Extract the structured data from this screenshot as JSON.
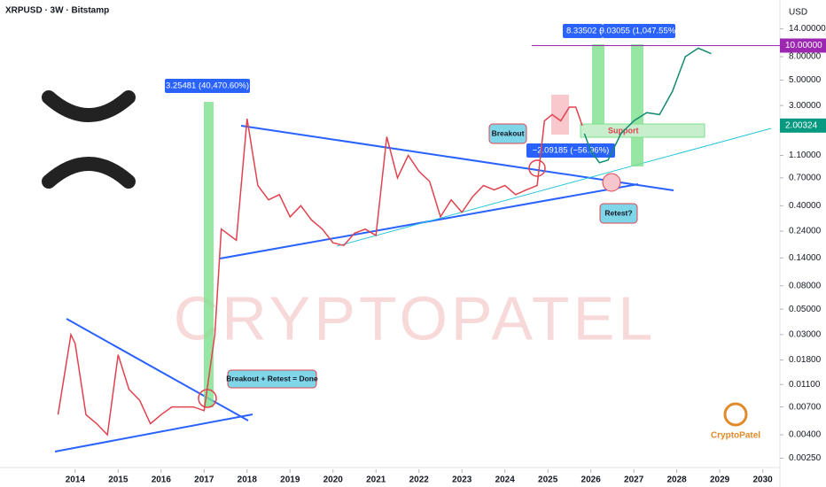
{
  "chart_data": {
    "type": "line",
    "title": "XRPUSD · 3W · Bitstamp",
    "currency": "USD",
    "log_scale": true,
    "xlim": [
      2012.25,
      2030.4
    ],
    "xticks": [
      2014,
      2015,
      2016,
      2017,
      2018,
      2019,
      2020,
      2021,
      2022,
      2023,
      2024,
      2025,
      2026,
      2027,
      2028,
      2029,
      2030
    ],
    "ylim": [
      0.002,
      25
    ],
    "yticks": [
      {
        "value": 14,
        "label": "14.00000"
      },
      {
        "value": 8,
        "label": "8.00000"
      },
      {
        "value": 5,
        "label": "5.00000"
      },
      {
        "value": 3,
        "label": "3.00000"
      },
      {
        "value": 1.1,
        "label": "1.10000"
      },
      {
        "value": 0.7,
        "label": "0.70000"
      },
      {
        "value": 0.4,
        "label": "0.40000"
      },
      {
        "value": 0.24,
        "label": "0.24000"
      },
      {
        "value": 0.14,
        "label": "0.14000"
      },
      {
        "value": 0.08,
        "label": "0.08000"
      },
      {
        "value": 0.05,
        "label": "0.05000"
      },
      {
        "value": 0.03,
        "label": "0.03000"
      },
      {
        "value": 0.018,
        "label": "0.01800"
      },
      {
        "value": 0.011,
        "label": "0.01100"
      },
      {
        "value": 0.007,
        "label": "0.00700"
      },
      {
        "value": 0.004,
        "label": "0.00400"
      },
      {
        "value": 0.0025,
        "label": "0.00250"
      }
    ],
    "price_labels": [
      {
        "value": 10,
        "label": "10.00000",
        "color": "#9c27b0"
      },
      {
        "value": 2.00324,
        "label": "2.00324",
        "color": "#089981"
      }
    ],
    "series": [
      {
        "color": "#e0424f",
        "x": [
          2013.6,
          2013.9,
          2014.0,
          2014.25,
          2014.5,
          2014.75,
          2015.0,
          2015.25,
          2015.5,
          2015.75,
          2016.0,
          2016.25,
          2016.5,
          2016.75,
          2017.0,
          2017.25,
          2017.4,
          2017.75,
          2018.0,
          2018.25,
          2018.5,
          2018.75,
          2019.0,
          2019.25,
          2019.5,
          2019.75,
          2020.0,
          2020.25,
          2020.5,
          2020.75,
          2021.0,
          2021.25,
          2021.5,
          2021.75,
          2022.0,
          2022.25,
          2022.5,
          2022.75,
          2023.0,
          2023.25,
          2023.5,
          2023.75,
          2024.0,
          2024.25,
          2024.5,
          2024.75,
          2024.92,
          2025.1,
          2025.3,
          2025.5,
          2025.65,
          2025.8
        ],
        "values": [
          0.006,
          0.03,
          0.025,
          0.006,
          0.005,
          0.004,
          0.02,
          0.01,
          0.008,
          0.005,
          0.006,
          0.007,
          0.007,
          0.007,
          0.0065,
          0.03,
          0.25,
          0.2,
          2.3,
          0.6,
          0.45,
          0.5,
          0.32,
          0.4,
          0.3,
          0.25,
          0.19,
          0.18,
          0.23,
          0.25,
          0.22,
          1.6,
          0.7,
          1.1,
          0.8,
          0.65,
          0.32,
          0.45,
          0.35,
          0.48,
          0.6,
          0.55,
          0.6,
          0.5,
          0.55,
          0.6,
          2.2,
          2.5,
          2.2,
          2.9,
          2.9,
          2.0
        ]
      },
      {
        "color": "#138a72",
        "x": [
          2025.85,
          2026.0,
          2026.2,
          2026.4,
          2026.7,
          2027.0,
          2027.3,
          2027.6,
          2027.9,
          2028.2,
          2028.5,
          2028.8
        ],
        "values": [
          1.7,
          1.2,
          0.95,
          1.0,
          1.7,
          2.2,
          2.6,
          2.5,
          4,
          8,
          9.5,
          8.5
        ]
      }
    ],
    "annotations": {
      "gain_2017": "3.25481 (40,470.60%)",
      "breakout_retest": "Breakout + Retest = Done",
      "breakout": "Breakout",
      "drop": "−2.09185 (−56.96%)",
      "retest": "Retest?",
      "support": "Support",
      "target_1": "8.33502 (",
      "target_2": "9.03055 (1,047.55%)",
      "logo": "CryptoPatel",
      "watermark": "CRYPTOPATEL"
    }
  }
}
